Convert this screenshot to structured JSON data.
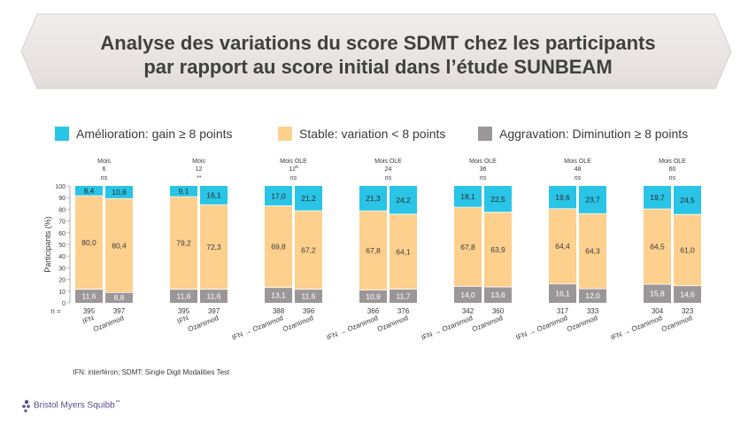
{
  "header": {
    "title_line1": "Analyse des variations du score SDMT chez les participants",
    "title_line2": "par rapport au score initial dans l’étude SUNBEAM"
  },
  "legend": [
    {
      "label": "Amélioration: gain ≥ 8 points",
      "color": "#29c4e6"
    },
    {
      "label": "Stable: variation < 8 points",
      "color": "#fdd08e"
    },
    {
      "label": "Aggravation: Diminution ≥ 8 points",
      "color": "#9b9799"
    }
  ],
  "chart_data": {
    "type": "bar",
    "stacked": true,
    "percent": true,
    "ylabel": "Participants (%)",
    "ylim": [
      0,
      100
    ],
    "yticks": [
      0,
      10,
      20,
      30,
      40,
      50,
      60,
      70,
      80,
      90,
      100
    ],
    "n_label": "n =",
    "groups": [
      {
        "line1": "Mois",
        "line2": "6",
        "line3": "ns",
        "bars": [
          {
            "category": "IFN",
            "n": "395",
            "improve": "8,4",
            "stable": "80,0",
            "worse": "11,6"
          },
          {
            "category": "Ozanimod",
            "n": "397",
            "improve": "10,8",
            "stable": "80,4",
            "worse": "8,8"
          }
        ]
      },
      {
        "line1": "Mois",
        "line2": "12",
        "line3": "**",
        "bars": [
          {
            "category": "IFN",
            "n": "395",
            "improve": "9,1",
            "stable": "79,2",
            "worse": "11,6"
          },
          {
            "category": "Ozanimod",
            "n": "397",
            "improve": "16,1",
            "stable": "72,3",
            "worse": "11,6"
          }
        ]
      },
      {
        "line1": "Mois OLE",
        "line2": "12b",
        "line3": "ns",
        "bars": [
          {
            "category": "IFN → Ozanimod",
            "n": "388",
            "improve": "17,0",
            "stable": "69,8",
            "worse": "13,1"
          },
          {
            "category": "Ozanimod",
            "n": "396",
            "improve": "21,2",
            "stable": "67,2",
            "worse": "11,6"
          }
        ]
      },
      {
        "line1": "Mois OLE",
        "line2": "24",
        "line3": "ns",
        "bars": [
          {
            "category": "IFN → Ozanimod",
            "n": "366",
            "improve": "21,3",
            "stable": "67,8",
            "worse": "10,9"
          },
          {
            "category": "Ozanimod",
            "n": "376",
            "improve": "24,2",
            "stable": "64,1",
            "worse": "11,7"
          }
        ]
      },
      {
        "line1": "Mois OLE",
        "line2": "36",
        "line3": "ns",
        "bars": [
          {
            "category": "IFN → Ozanimod",
            "n": "342",
            "improve": "18,1",
            "stable": "67,8",
            "worse": "14,0"
          },
          {
            "category": "Ozanimod",
            "n": "360",
            "improve": "22,5",
            "stable": "63,9",
            "worse": "13,6"
          }
        ]
      },
      {
        "line1": "Mois OLE",
        "line2": "48",
        "line3": "ns",
        "bars": [
          {
            "category": "IFN → Ozanimod",
            "n": "317",
            "improve": "19,6",
            "stable": "64,4",
            "worse": "16,1"
          },
          {
            "category": "Ozanimod",
            "n": "333",
            "improve": "23,7",
            "stable": "64,3",
            "worse": "12,0"
          }
        ]
      },
      {
        "line1": "Mois OLE",
        "line2": "60",
        "line3": "ns",
        "bars": [
          {
            "category": "IFN → Ozanimod",
            "n": "304",
            "improve": "19,7",
            "stable": "64,5",
            "worse": "15,8"
          },
          {
            "category": "Ozanimod",
            "n": "323",
            "improve": "24,5",
            "stable": "61,0",
            "worse": "14,6"
          }
        ]
      }
    ]
  },
  "footnote": "IFN: interféron; SDMT: Single Digit Modalities Test",
  "brand": {
    "name": "Bristol Myers Squibb",
    "mark": "™",
    "color": "#5b4a8b"
  }
}
